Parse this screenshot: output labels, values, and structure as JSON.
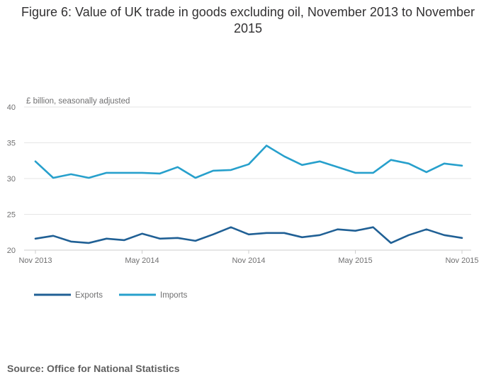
{
  "page": {
    "title": "Figure 6: Value of UK trade in goods excluding oil, November 2013 to November 2015",
    "source": "Source: Office for National Statistics"
  },
  "chart_data": {
    "type": "line",
    "title": "Figure 6: Value of UK trade in goods excluding oil, November 2013 to November 2015",
    "ylabel": "£ billion, seasonally adjusted",
    "xlabel": "",
    "ylim": [
      20,
      40
    ],
    "yticks": [
      20,
      25,
      30,
      35,
      40
    ],
    "xtick_labels": [
      {
        "index": 0,
        "label": "Nov 2013"
      },
      {
        "index": 6,
        "label": "May 2014"
      },
      {
        "index": 12,
        "label": "Nov 2014"
      },
      {
        "index": 18,
        "label": "May 2015"
      },
      {
        "index": 24,
        "label": "Nov 2015"
      }
    ],
    "x": [
      "Nov 2013",
      "Dec 2013",
      "Jan 2014",
      "Feb 2014",
      "Mar 2014",
      "Apr 2014",
      "May 2014",
      "Jun 2014",
      "Jul 2014",
      "Aug 2014",
      "Sep 2014",
      "Oct 2014",
      "Nov 2014",
      "Dec 2014",
      "Jan 2015",
      "Feb 2015",
      "Mar 2015",
      "Apr 2015",
      "May 2015",
      "Jun 2015",
      "Jul 2015",
      "Aug 2015",
      "Sep 2015",
      "Oct 2015",
      "Nov 2015"
    ],
    "grid": true,
    "legend_position": "bottom-left",
    "series": [
      {
        "name": "Exports",
        "color": "#206095",
        "values": [
          21.6,
          22.0,
          21.2,
          21.0,
          21.6,
          21.4,
          22.3,
          21.6,
          21.7,
          21.3,
          22.2,
          23.2,
          22.2,
          22.4,
          22.4,
          21.8,
          22.1,
          22.9,
          22.7,
          23.2,
          21.0,
          22.1,
          22.9,
          22.1,
          21.7
        ]
      },
      {
        "name": "Imports",
        "color": "#27a0cc",
        "values": [
          32.4,
          30.1,
          30.6,
          30.1,
          30.8,
          30.8,
          30.8,
          30.7,
          31.6,
          30.1,
          31.1,
          31.2,
          32.0,
          34.6,
          33.1,
          31.9,
          32.4,
          31.6,
          30.8,
          30.8,
          32.6,
          32.1,
          30.9,
          32.1,
          31.8
        ]
      }
    ]
  }
}
